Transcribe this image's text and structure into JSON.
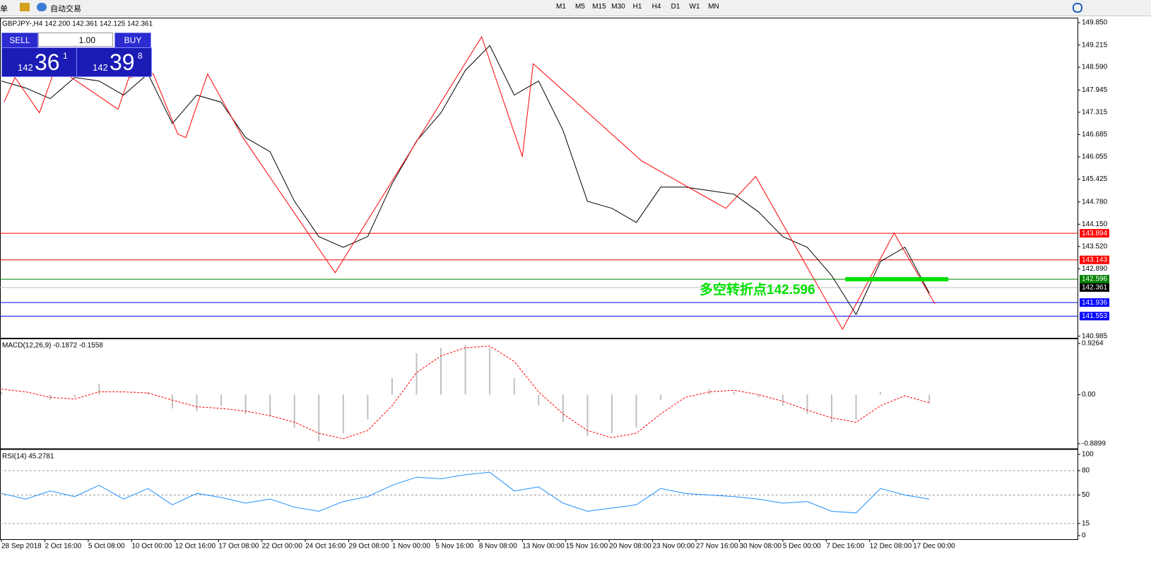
{
  "toolbar": {
    "menu_fragment": "单",
    "auto_trading": "自动交易",
    "timeframes": [
      "M1",
      "M5",
      "M15",
      "M30",
      "H1",
      "H4",
      "D1",
      "W1",
      "MN"
    ]
  },
  "trade_panel": {
    "sell": "SELL",
    "buy": "BUY",
    "lots": "1.00",
    "bid": {
      "big": "142",
      "main": "36",
      "small": "1"
    },
    "ask": {
      "big": "142",
      "main": "39",
      "small": "8"
    }
  },
  "chart_data": [
    {
      "type": "line",
      "title": "GBPJPY-,H4  142.200 142.361 142.125 142.361",
      "ylim": [
        140.94,
        149.99
      ],
      "xlim": [
        0,
        397
      ],
      "yticks": [
        {
          "value": 149.85,
          "label": "149.850"
        },
        {
          "value": 149.215,
          "label": "149.215"
        },
        {
          "value": 148.59,
          "label": "148.590"
        },
        147.945,
        147.315,
        146.685,
        146.055,
        145.425,
        {
          "value": 144.78,
          "label": "144.780"
        },
        {
          "value": 144.15,
          "label": "144.150"
        },
        {
          "value": 143.52,
          "label": "143.520"
        },
        {
          "value": 142.89,
          "label": "142.890"
        },
        140.985
      ],
      "xticks": [
        {
          "value": 0,
          "label": "28 Sep 2018"
        },
        {
          "value": 16,
          "label": "2 Oct 16:00"
        },
        {
          "value": 32,
          "label": "5 Oct 08:00"
        },
        {
          "value": 48,
          "label": "10 Oct 00:00"
        },
        {
          "value": 64,
          "label": "12 Oct 16:00"
        },
        {
          "value": 80,
          "label": "17 Oct 08:00"
        },
        {
          "value": 96,
          "label": "22 Oct 00:00"
        },
        {
          "value": 112,
          "label": "24 Oct 16:00"
        },
        {
          "value": 128,
          "label": "29 Oct 08:00"
        },
        {
          "value": 144,
          "label": "1 Nov 00:00"
        },
        {
          "value": 160,
          "label": "5 Nov 16:00"
        },
        {
          "value": 176,
          "label": "8 Nov 08:00"
        },
        {
          "value": 192,
          "label": "13 Nov 00:00"
        },
        {
          "value": 208,
          "label": "15 Nov 16:00"
        },
        {
          "value": 224,
          "label": "20 Nov 08:00"
        },
        {
          "value": 240,
          "label": "23 Nov 00:00"
        },
        {
          "value": 256,
          "label": "27 Nov 16:00"
        },
        {
          "value": 272,
          "label": "30 Nov 08:00"
        },
        {
          "value": 288,
          "label": "5 Dec 00:00"
        },
        {
          "value": 304,
          "label": "7 Dec 16:00"
        },
        {
          "value": 320,
          "label": "12 Dec 08:00"
        },
        {
          "value": 336,
          "label": "17 Dec 00:00"
        }
      ],
      "series": [
        {
          "color": "#000000",
          "x": [
            0,
            9,
            18,
            27,
            36,
            45,
            54,
            63,
            72,
            81,
            90,
            99,
            108,
            117,
            126,
            135,
            144,
            153,
            162,
            171,
            180,
            189,
            198,
            207,
            216,
            225,
            234,
            243,
            252,
            261,
            270,
            279,
            288,
            297,
            306,
            315,
            324,
            333,
            342
          ],
          "values": [
            148.2,
            148.0,
            147.7,
            148.3,
            148.2,
            147.8,
            148.4,
            147.0,
            147.8,
            147.6,
            146.6,
            146.2,
            144.8,
            143.8,
            143.5,
            143.8,
            145.3,
            146.5,
            147.3,
            148.5,
            149.2,
            147.8,
            148.2,
            146.8,
            144.8,
            144.6,
            144.2,
            145.2,
            145.2,
            145.1,
            145.0,
            144.5,
            143.8,
            143.5,
            142.7,
            141.6,
            143.1,
            143.5,
            142.2
          ]
        },
        {
          "color": "#ff0000",
          "x": [
            1,
            5,
            14,
            20,
            43,
            47,
            56,
            65,
            68,
            76,
            89,
            123,
            177,
            192,
            196,
            236,
            267,
            278,
            310,
            329,
            344
          ],
          "values": [
            147.6,
            148.3,
            147.3,
            148.6,
            147.4,
            148.3,
            148.4,
            146.7,
            146.6,
            148.4,
            146.6,
            142.78,
            149.45,
            146.06,
            148.69,
            145.94,
            144.6,
            145.5,
            141.18,
            143.9,
            141.9
          ]
        }
      ],
      "levels": [
        {
          "value": 143.894,
          "label": "143.894",
          "color": "#ff0000"
        },
        {
          "value": 143.143,
          "label": "143.143",
          "color": "#ff0000"
        },
        {
          "value": 142.596,
          "label": "142.596",
          "color": "#008000"
        },
        {
          "value": 142.361,
          "label": "142.361",
          "color": "#000000"
        },
        {
          "value": 141.936,
          "label": "141.936",
          "color": "#0000ff"
        },
        {
          "value": 141.553,
          "label": "141.553",
          "color": "#0000ff"
        }
      ],
      "annotation": {
        "text": "多空转折点142.596",
        "value": 142.596,
        "x": [
          311,
          349
        ],
        "color": "#00e000"
      }
    },
    {
      "type": "macd",
      "title": "MACD(12,26,9) -0.1872 -0.1558",
      "ylim": [
        -0.968,
        1.004
      ],
      "xlim": [
        0,
        397
      ],
      "yticks": [
        0.9264,
        {
          "value": 0,
          "label": "0.00"
        },
        -0.8899
      ],
      "x": [
        0,
        9,
        18,
        27,
        36,
        45,
        54,
        63,
        72,
        81,
        90,
        99,
        108,
        117,
        126,
        135,
        144,
        153,
        162,
        171,
        180,
        189,
        198,
        207,
        216,
        225,
        234,
        243,
        252,
        261,
        270,
        279,
        288,
        297,
        306,
        315,
        324,
        333,
        342
      ],
      "series": [
        {
          "color": "#c0c0c0",
          "values": [
            0.05,
            0.0,
            -0.1,
            -0.05,
            0.2,
            0.0,
            0.05,
            -0.25,
            -0.3,
            -0.2,
            -0.35,
            -0.4,
            -0.6,
            -0.85,
            -0.7,
            -0.45,
            0.3,
            0.75,
            0.85,
            0.9,
            0.85,
            0.3,
            -0.2,
            -0.5,
            -0.75,
            -0.7,
            -0.6,
            -0.1,
            0.0,
            0.1,
            0.05,
            -0.05,
            -0.2,
            -0.35,
            -0.5,
            -0.45,
            0.05,
            0.0,
            -0.15
          ]
        },
        {
          "color": "#ff0000",
          "values": [
            0.1,
            0.05,
            -0.05,
            -0.08,
            0.05,
            0.05,
            0.03,
            -0.1,
            -0.22,
            -0.25,
            -0.3,
            -0.38,
            -0.5,
            -0.7,
            -0.8,
            -0.65,
            -0.2,
            0.4,
            0.7,
            0.85,
            0.88,
            0.6,
            0.05,
            -0.35,
            -0.65,
            -0.78,
            -0.7,
            -0.35,
            -0.05,
            0.05,
            0.08,
            0.0,
            -0.12,
            -0.28,
            -0.42,
            -0.5,
            -0.2,
            -0.02,
            -0.15
          ]
        }
      ]
    },
    {
      "type": "rsi",
      "title": "RSI(14) 45.2781",
      "ylim": [
        -3.5,
        105.2
      ],
      "xlim": [
        0,
        397
      ],
      "yticks": [
        100,
        80,
        50,
        15,
        0
      ],
      "grid": [
        80,
        50,
        15
      ],
      "x": [
        0,
        9,
        18,
        27,
        36,
        45,
        54,
        63,
        72,
        81,
        90,
        99,
        108,
        117,
        126,
        135,
        144,
        153,
        162,
        171,
        180,
        189,
        198,
        207,
        216,
        225,
        234,
        243,
        252,
        261,
        270,
        279,
        288,
        297,
        306,
        315,
        324,
        333,
        342
      ],
      "series": [
        {
          "color": "#1e90ff",
          "values": [
            52,
            45,
            55,
            48,
            62,
            45,
            58,
            38,
            52,
            47,
            40,
            45,
            35,
            30,
            42,
            48,
            62,
            72,
            70,
            75,
            78,
            55,
            60,
            40,
            30,
            34,
            38,
            58,
            52,
            50,
            48,
            45,
            40,
            42,
            30,
            28,
            58,
            50,
            45
          ]
        }
      ]
    }
  ]
}
